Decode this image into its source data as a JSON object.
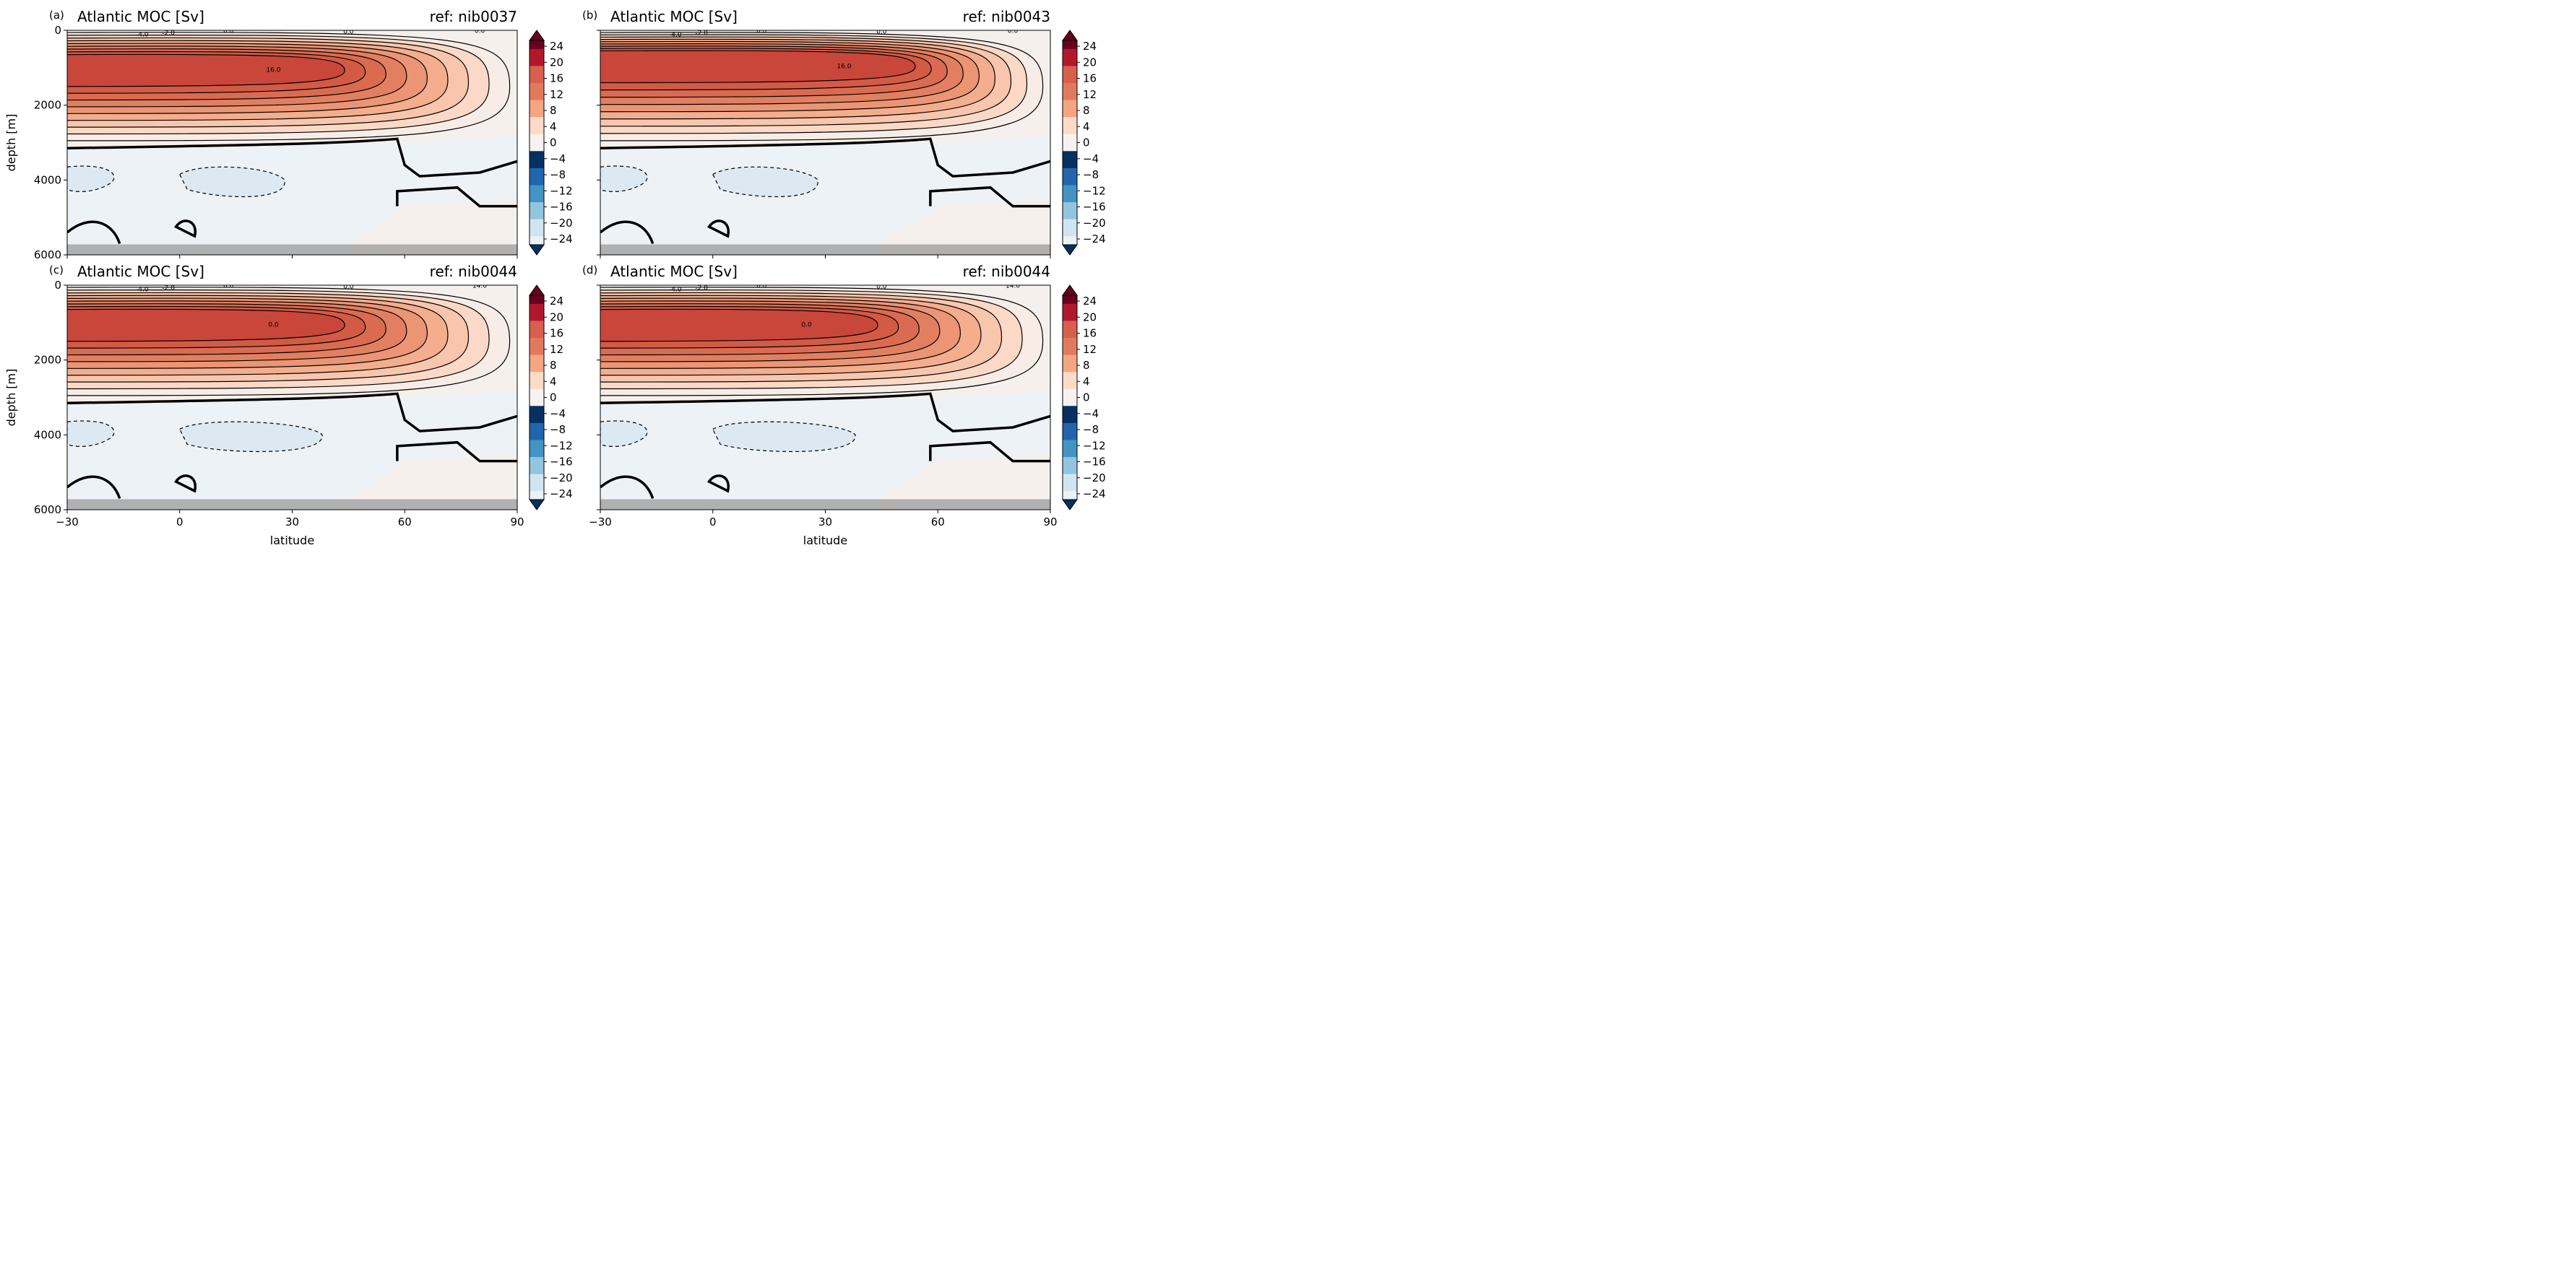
{
  "colors": {
    "neg": [
      "#053061",
      "#2166ac",
      "#4393c3",
      "#92c5de",
      "#d1e5f0",
      "#eaf2f8"
    ],
    "pos": [
      "#f7f2ef",
      "#fddbc7",
      "#f4a582",
      "#e07a5f",
      "#d6604d",
      "#b2182b",
      "#67001f"
    ],
    "land": "#b0b0b0",
    "deep_pos": "#f6f0ec",
    "deep_neg": "#edf2f7",
    "blob_neg": "#dde9f2"
  },
  "axes": {
    "xlabel": "latitude",
    "ylabel": "depth [m]",
    "xticks": [
      "−30",
      "0",
      "30",
      "60",
      "90"
    ],
    "yticks": [
      "0",
      "2000",
      "4000",
      "6000"
    ]
  },
  "colorbar": {
    "ticks": [
      "24",
      "20",
      "16",
      "12",
      "8",
      "4",
      "0",
      "−4",
      "−8",
      "−12",
      "−16",
      "−20",
      "−24"
    ]
  },
  "chart_data": [
    {
      "type": "heatmap",
      "panel": "(a)",
      "title": "Atlantic MOC [Sv]",
      "ref": "ref: nib0037",
      "x_range": [
        -30,
        90
      ],
      "y_range": [
        0,
        6000
      ],
      "y_inverted": true,
      "colorbar_range": [
        -24,
        24
      ],
      "max_overturning_sv": 16.0,
      "max_location": {
        "lat": 30,
        "depth_m": 1000
      },
      "contour_labels": [
        "-4.0",
        "-2.0",
        "0.0",
        "0.0",
        "0.0",
        "16.0",
        "0.0",
        "0.0",
        "-2.0",
        "0.0",
        "0.0",
        "0.0",
        "0.0"
      ],
      "xlabel": "",
      "ylabel": "depth [m]"
    },
    {
      "type": "heatmap",
      "panel": "(b)",
      "title": "Atlantic MOC [Sv]",
      "ref": "ref: nib0043",
      "x_range": [
        -30,
        90
      ],
      "y_range": [
        0,
        6000
      ],
      "y_inverted": true,
      "colorbar_range": [
        -24,
        24
      ],
      "max_overturning_sv": 16.0,
      "max_location": {
        "lat": 40,
        "depth_m": 900
      },
      "contour_labels": [
        "-4.0",
        "-2.0",
        "0.0",
        "0.0",
        "0.0",
        "16.0",
        "0.0",
        "-2.0",
        "0.0",
        "0.0"
      ],
      "xlabel": "",
      "ylabel": ""
    },
    {
      "type": "heatmap",
      "panel": "(c)",
      "title": "Atlantic MOC [Sv]",
      "ref": "ref: nib0044",
      "x_range": [
        -30,
        90
      ],
      "y_range": [
        0,
        6000
      ],
      "y_inverted": true,
      "colorbar_range": [
        -24,
        24
      ],
      "max_overturning_sv": 14.0,
      "max_location": {
        "lat": 30,
        "depth_m": 1000
      },
      "contour_labels": [
        "-4.0",
        "-2.0",
        "0.0",
        "0.0",
        "14.0",
        "0.0",
        "-2.0",
        "0.0"
      ],
      "xlabel": "latitude",
      "ylabel": "depth [m]"
    },
    {
      "type": "heatmap",
      "panel": "(d)",
      "title": "Atlantic MOC [Sv]",
      "ref": "ref: nib0044",
      "x_range": [
        -30,
        90
      ],
      "y_range": [
        0,
        6000
      ],
      "y_inverted": true,
      "colorbar_range": [
        -24,
        24
      ],
      "max_overturning_sv": 14.0,
      "max_location": {
        "lat": 30,
        "depth_m": 1000
      },
      "contour_labels": [
        "-4.0",
        "-2.0",
        "0.0",
        "0.0",
        "14.0",
        "0.0",
        "-2.0",
        "0.0"
      ],
      "xlabel": "latitude",
      "ylabel": ""
    }
  ]
}
